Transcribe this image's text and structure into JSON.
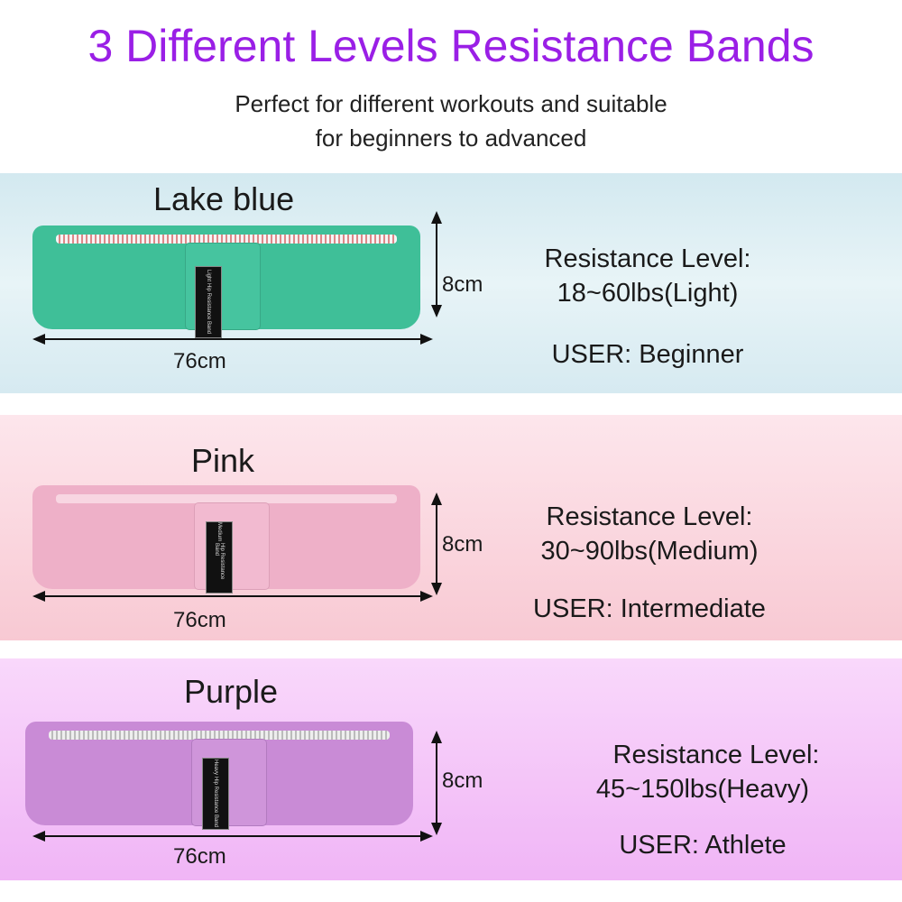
{
  "title": "3 Different Levels Resistance Bands",
  "subtitle": [
    "Perfect for different workouts and suitable",
    "for beginners to advanced"
  ],
  "bands": [
    {
      "color_name": "Lake blue",
      "height": "8cm",
      "length": "76cm",
      "level_label": "Resistance Level:",
      "level": "18~60lbs(Light)",
      "user": "USER: Beginner",
      "tag": [
        "Light",
        "Hip Resistance Band"
      ],
      "band_color": "#3fbf98"
    },
    {
      "color_name": "Pink",
      "height": "8cm",
      "length": "76cm",
      "level_label": "Resistance Level:",
      "level": "30~90lbs(Medium)",
      "user": "USER: Intermediate",
      "tag": [
        "Medium",
        "Hip Resistance Band"
      ],
      "band_color": "#eeb0c8"
    },
    {
      "color_name": "Purple",
      "height": "8cm",
      "length": "76cm",
      "level_label": "Resistance Level:",
      "level": "45~150lbs(Heavy)",
      "user": "USER: Athlete",
      "tag": [
        "Heavy",
        "Hip Resistance Band"
      ],
      "band_color": "#c98bd6"
    }
  ],
  "colors": {
    "title": "#9a1fe6"
  }
}
